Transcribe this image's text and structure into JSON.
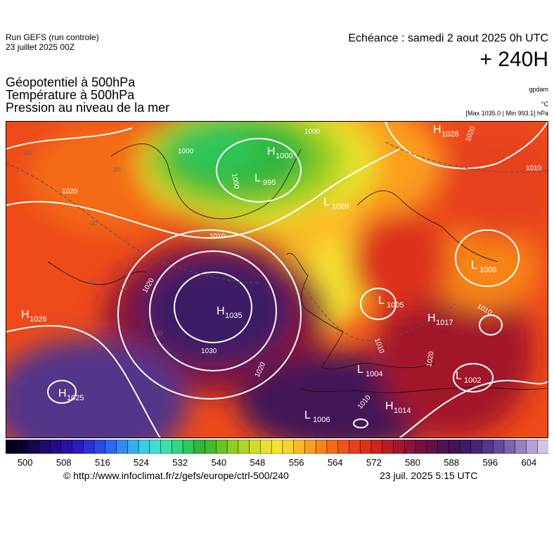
{
  "header": {
    "run_line1": "Run GEFS (run controle)",
    "run_line2": "23 juillet 2025 00Z",
    "echeance": "Echéance : samedi 2 aout 2025 0h UTC",
    "hour": "+ 240H",
    "unit_gpdam": "gpdam",
    "unit_c": "°C",
    "range": "[Max 1035.0 | Min 993.1] hPa"
  },
  "params": {
    "line1": "Géopotentiel à 500hPa",
    "line2": "Température à 500hPa",
    "line3": "Pression au niveau de la mer"
  },
  "map": {
    "pressure_centers": [
      {
        "type": "H",
        "value": "1028"
      },
      {
        "type": "H",
        "value": "1000"
      },
      {
        "type": "L",
        "value": "995"
      },
      {
        "type": "L",
        "value": "1009"
      },
      {
        "type": "L",
        "value": "1000"
      },
      {
        "type": "H",
        "value": "1035"
      },
      {
        "type": "H",
        "value": "1026"
      },
      {
        "type": "L",
        "value": "1005"
      },
      {
        "type": "H",
        "value": "1017"
      },
      {
        "type": "L",
        "value": "1004"
      },
      {
        "type": "L",
        "value": "1002"
      },
      {
        "type": "H",
        "value": "1025"
      },
      {
        "type": "L",
        "value": "1006"
      },
      {
        "type": "H",
        "value": "1014"
      }
    ],
    "isobar_labels": [
      "1000",
      "1000",
      "1000",
      "1010",
      "1020",
      "1020",
      "1030",
      "1020",
      "1020",
      "1010",
      "1010",
      "1010",
      "1010",
      "1020"
    ],
    "temp_labels": [
      "-10",
      "-20",
      "-20",
      "-20",
      "-20",
      "-10"
    ]
  },
  "colorbar": {
    "colors": [
      "#050019",
      "#0d0030",
      "#16064a",
      "#1f0a66",
      "#230c86",
      "#2712a5",
      "#2b1ac0",
      "#2e2fd8",
      "#2c4ae9",
      "#2b68f0",
      "#2f8af2",
      "#35acf0",
      "#3ccbe4",
      "#3fdfcb",
      "#3be0a6",
      "#33d67e",
      "#2dc75b",
      "#2fb63c",
      "#47b92a",
      "#6ac324",
      "#8ecd22",
      "#b0d425",
      "#cfdb29",
      "#e8e22e",
      "#f6e431",
      "#fbd12c",
      "#fcb925",
      "#fb9e1e",
      "#f88419",
      "#f46a17",
      "#ee5418",
      "#e6401a",
      "#dc301b",
      "#cc241c",
      "#b81c22",
      "#a2172c",
      "#8c1436",
      "#77123f",
      "#631246",
      "#51134d",
      "#431456",
      "#3c1a66",
      "#422678",
      "#52368a",
      "#66489b",
      "#7f62ad",
      "#9a7fc1",
      "#b7a0d4",
      "#d4c5e6"
    ],
    "tick_labels": [
      "500",
      "508",
      "516",
      "524",
      "532",
      "540",
      "548",
      "556",
      "564",
      "572",
      "580",
      "588",
      "596",
      "604"
    ]
  },
  "footer": {
    "url": "© http://www.infoclimat.fr/z/gefs/europe/ctrl-500/240",
    "timestamp": "23 juil. 2025  5:15 UTC"
  }
}
